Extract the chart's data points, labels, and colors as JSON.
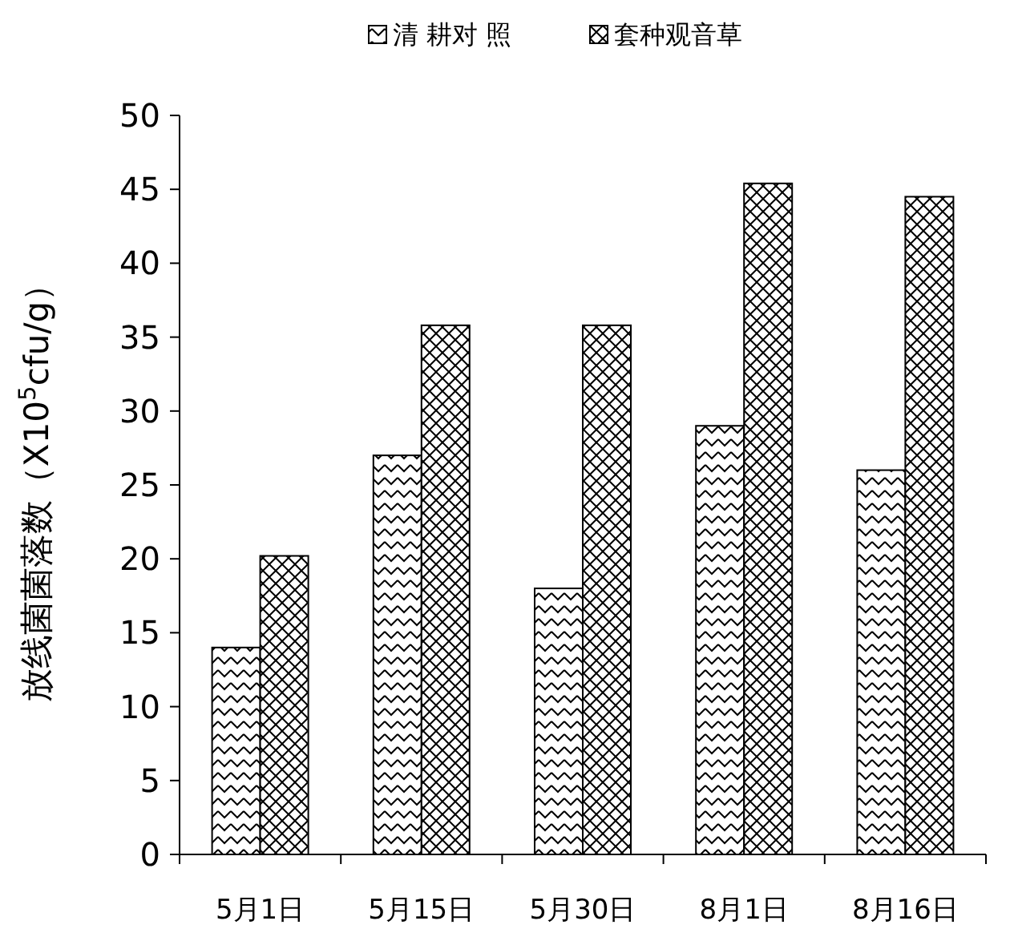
{
  "chart_data": {
    "type": "bar",
    "ylabel": "放线菌菌落数（X10$^{5}$cfu/g）",
    "categories": [
      "5月1日",
      "5月15日",
      "5月30日",
      "8月1日",
      "8月16日"
    ],
    "series": [
      {
        "name": "清 耕对 照",
        "color": "#000000",
        "values": [
          14,
          27,
          18,
          29,
          26
        ]
      },
      {
        "name": "套种观音草",
        "color": "#000000",
        "values": [
          20.2,
          35.8,
          35.8,
          45.4,
          44.5
        ]
      }
    ],
    "ylim": [
      0,
      50
    ],
    "yticks": [
      0,
      5,
      10,
      15,
      20,
      25,
      30,
      35,
      40,
      45,
      50
    ],
    "legend": "top",
    "grid": false
  }
}
